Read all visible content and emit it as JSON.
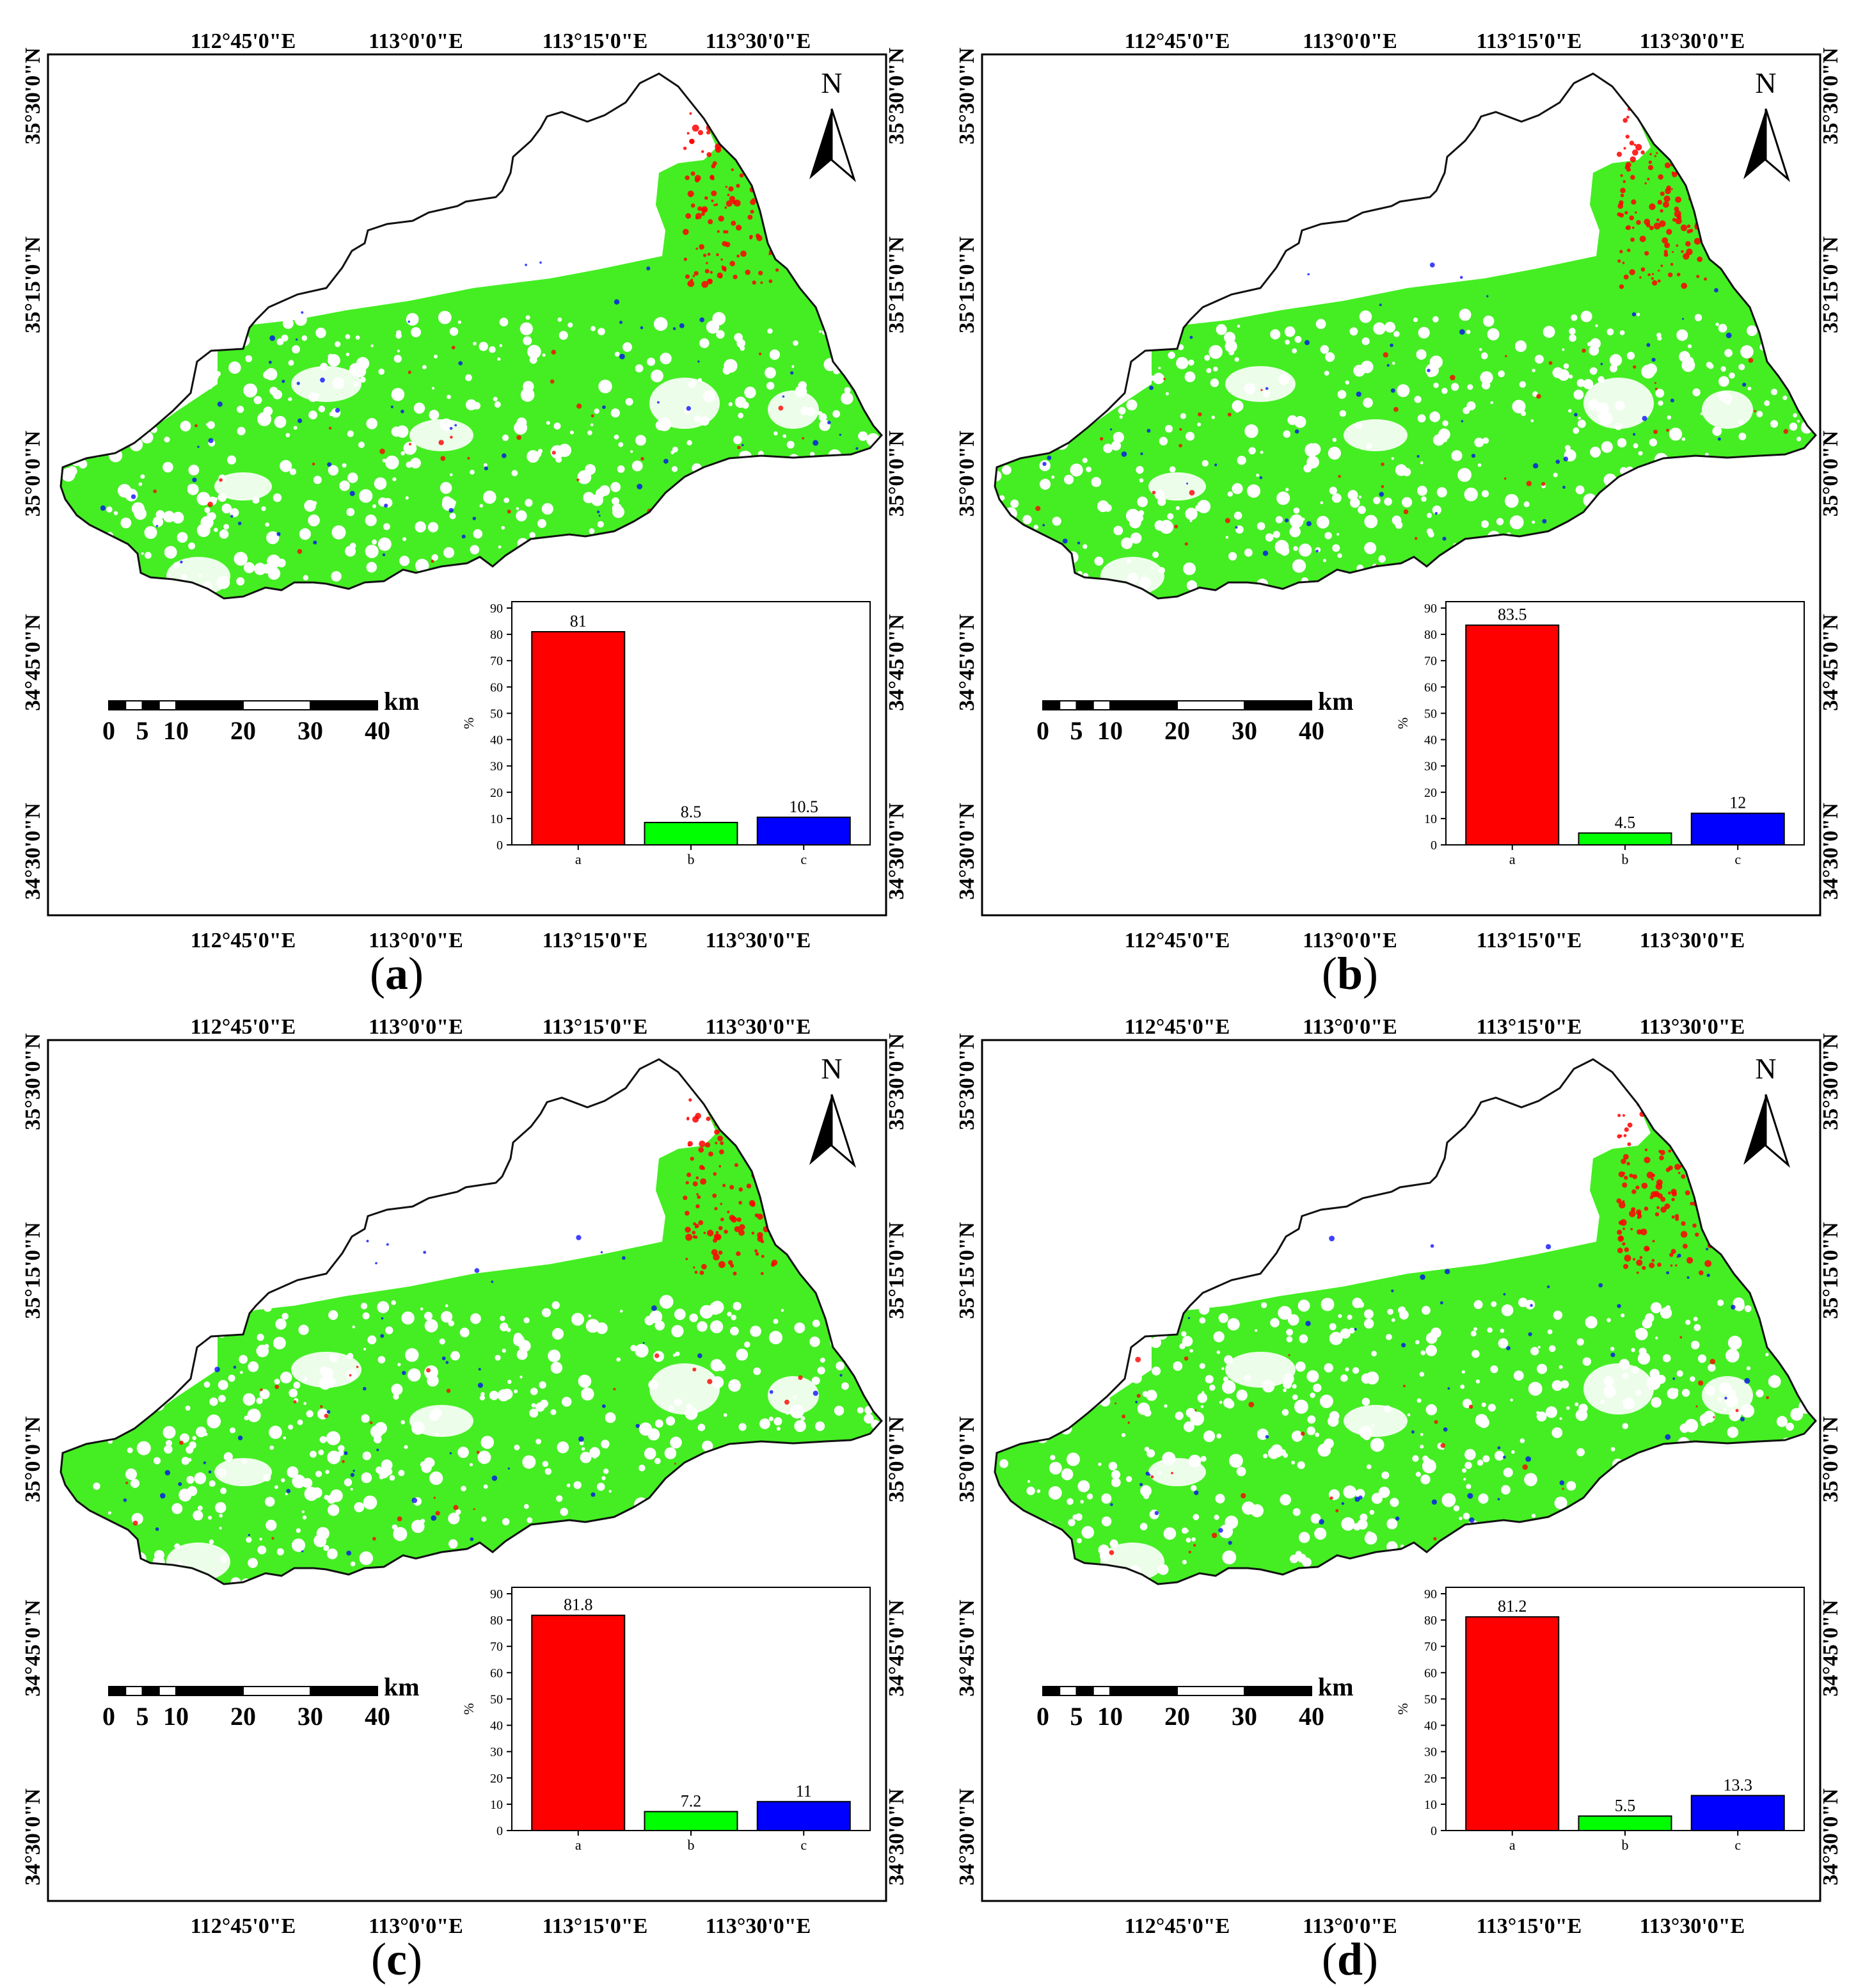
{
  "axes": {
    "top_lon": [
      "112°45'0\"E",
      "113°0'0\"E",
      "113°15'0\"E",
      "113°30'0\"E"
    ],
    "bottom_lon": [
      "112°45'0\"E",
      "113°0'0\"E",
      "113°15'0\"E",
      "113°30'0\"E"
    ],
    "left_lat": [
      "35°30'0\"N",
      "35°15'0\"N",
      "35°0'0\"N",
      "34°45'0\"N",
      "34°30'0\"N"
    ],
    "right_lat": [
      "35°30'0\"N",
      "35°15'0\"N",
      "35°0'0\"N",
      "34°45'0\"N",
      "34°30'0\"N"
    ]
  },
  "north_arrow": {
    "label": "N"
  },
  "scale_bar": {
    "unit": "km",
    "ticks": [
      "0",
      "5",
      "10",
      "20",
      "30",
      "40"
    ]
  },
  "colors": {
    "a": "#ff0000",
    "b": "#00ff00",
    "c": "#0000ff",
    "land": "#44ee22"
  },
  "panels": [
    {
      "id": "a",
      "caption": "a"
    },
    {
      "id": "b",
      "caption": "b"
    },
    {
      "id": "c",
      "caption": "c"
    },
    {
      "id": "d",
      "caption": "d"
    }
  ],
  "chart_data": [
    {
      "type": "bar",
      "panel": "a",
      "categories": [
        "a",
        "b",
        "c"
      ],
      "values": [
        81,
        8.5,
        10.5
      ],
      "data_labels": [
        "81",
        "8.5",
        "10.5"
      ],
      "ylabel": "%",
      "ylim": [
        0,
        90
      ],
      "yticks": [
        "0",
        "10",
        "20",
        "30",
        "40",
        "50",
        "60",
        "70",
        "80",
        "90"
      ]
    },
    {
      "type": "bar",
      "panel": "b",
      "categories": [
        "a",
        "b",
        "c"
      ],
      "values": [
        83.5,
        4.5,
        12
      ],
      "data_labels": [
        "83.5",
        "4.5",
        "12"
      ],
      "ylabel": "%",
      "ylim": [
        0,
        90
      ],
      "yticks": [
        "0",
        "10",
        "20",
        "30",
        "40",
        "50",
        "60",
        "70",
        "80",
        "90"
      ]
    },
    {
      "type": "bar",
      "panel": "c",
      "categories": [
        "a",
        "b",
        "c"
      ],
      "values": [
        81.8,
        7.2,
        11
      ],
      "data_labels": [
        "81.8",
        "7.2",
        "11"
      ],
      "ylabel": "%",
      "ylim": [
        0,
        90
      ],
      "yticks": [
        "0",
        "10",
        "20",
        "30",
        "40",
        "50",
        "60",
        "70",
        "80",
        "90"
      ]
    },
    {
      "type": "bar",
      "panel": "d",
      "categories": [
        "a",
        "b",
        "c"
      ],
      "values": [
        81.2,
        5.5,
        13.3
      ],
      "data_labels": [
        "81.2",
        "5.5",
        "13.3"
      ],
      "ylabel": "%",
      "ylim": [
        0,
        90
      ],
      "yticks": [
        "0",
        "10",
        "20",
        "30",
        "40",
        "50",
        "60",
        "70",
        "80",
        "90"
      ]
    }
  ]
}
